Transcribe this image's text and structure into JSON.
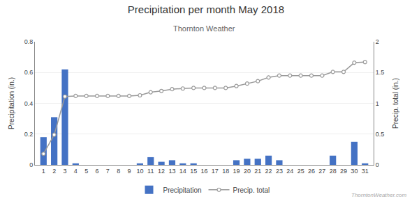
{
  "chart_data": {
    "type": "bar",
    "title": "Precipitation per month May 2018",
    "subtitle": "Thornton Weather",
    "annotations": [
      "ThorntonWeather.com"
    ],
    "ylabel": "Precipitation (in.)",
    "y2label": "Precip. total (in.)",
    "x": [
      1,
      2,
      3,
      4,
      5,
      6,
      7,
      8,
      9,
      10,
      11,
      12,
      13,
      14,
      15,
      16,
      17,
      18,
      19,
      20,
      21,
      22,
      23,
      24,
      25,
      26,
      27,
      28,
      29,
      30,
      31
    ],
    "series": [
      {
        "name": "Precipitation",
        "type": "bar",
        "color": "#4472c4",
        "values": [
          0.18,
          0.31,
          0.62,
          0.01,
          0.0,
          0.0,
          0.0,
          0.0,
          0.0,
          0.01,
          0.05,
          0.02,
          0.03,
          0.01,
          0.01,
          0.0,
          0.0,
          0.0,
          0.03,
          0.04,
          0.04,
          0.06,
          0.03,
          0.0,
          0.0,
          0.0,
          0.0,
          0.06,
          0.0,
          0.15,
          0.01
        ]
      },
      {
        "name": "Precip. total",
        "type": "line",
        "axis": "y2",
        "color": "#999999",
        "marker": "circle",
        "values": [
          0.18,
          0.49,
          1.11,
          1.12,
          1.12,
          1.12,
          1.12,
          1.12,
          1.12,
          1.13,
          1.18,
          1.2,
          1.23,
          1.24,
          1.25,
          1.25,
          1.25,
          1.25,
          1.28,
          1.32,
          1.36,
          1.42,
          1.45,
          1.45,
          1.45,
          1.45,
          1.45,
          1.51,
          1.51,
          1.66,
          1.67
        ]
      }
    ],
    "xlim": [
      0.2,
      31.8
    ],
    "xticks": [
      1,
      2,
      3,
      4,
      5,
      6,
      7,
      8,
      9,
      10,
      11,
      12,
      13,
      14,
      15,
      16,
      17,
      18,
      19,
      20,
      21,
      22,
      23,
      24,
      25,
      26,
      27,
      28,
      29,
      30,
      31
    ],
    "ylim": [
      0,
      0.8
    ],
    "yticks": [
      0,
      0.2,
      0.4,
      0.6,
      0.8
    ],
    "y2lim": [
      0,
      2.0
    ],
    "y2ticks": [
      0,
      0.5,
      1,
      1.5,
      2
    ],
    "grid": true,
    "legend": "bottom"
  }
}
